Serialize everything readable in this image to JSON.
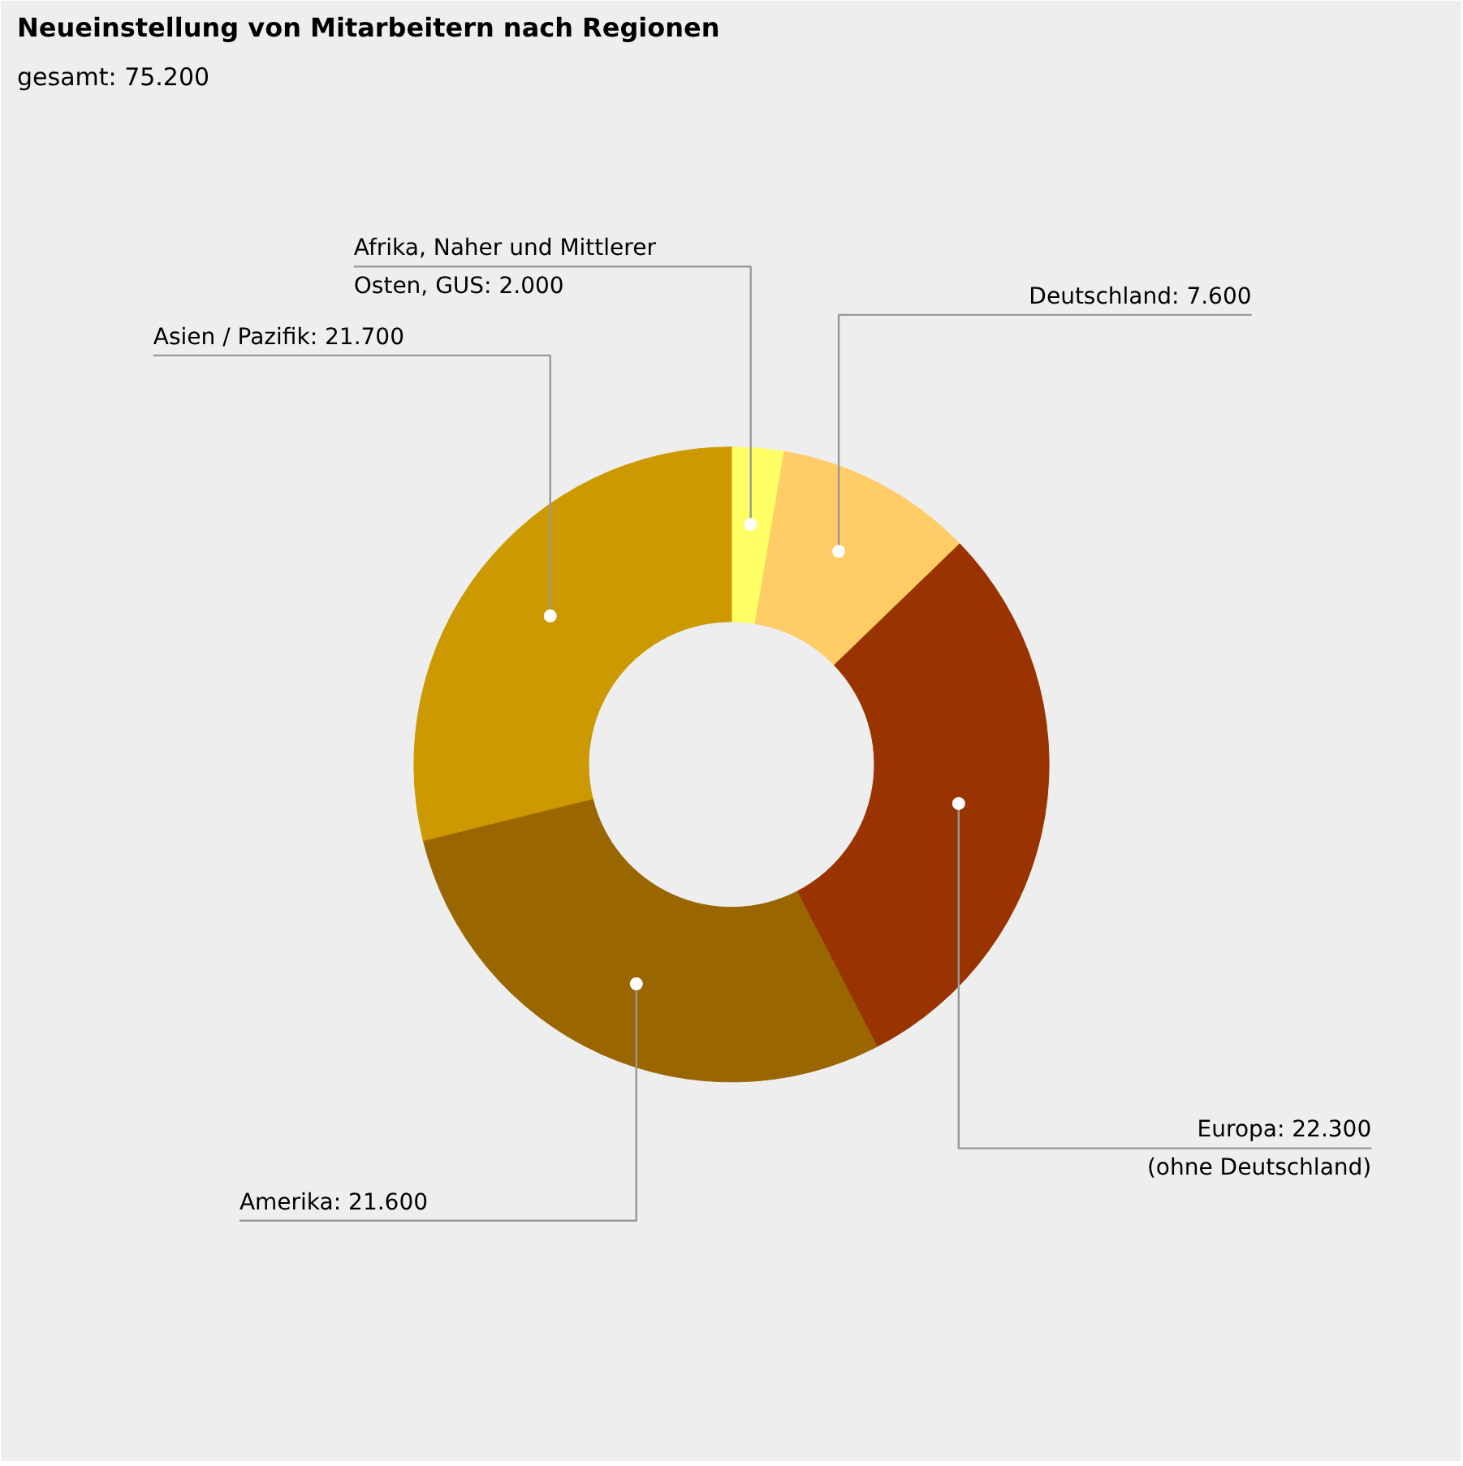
{
  "chart_data": {
    "type": "donut",
    "title": "Neueinstellung von Mitarbeitern nach Regionen",
    "subtitle": "gesamt: 75.200",
    "categories": [
      "Afrika, Naher und Mittlerer\nOsten, GUS: 2.000",
      "Deutschland: 7.600",
      "Europa: 22.300\n(ohne Deutschland)",
      "Amerika: 21.600",
      "Asien / Pazifik: 21.700"
    ],
    "values": [
      2000,
      7600,
      22300,
      21600,
      21700
    ],
    "colors": [
      "#ffff66",
      "#ffcc66",
      "#993300",
      "#996600",
      "#cc9900"
    ]
  }
}
